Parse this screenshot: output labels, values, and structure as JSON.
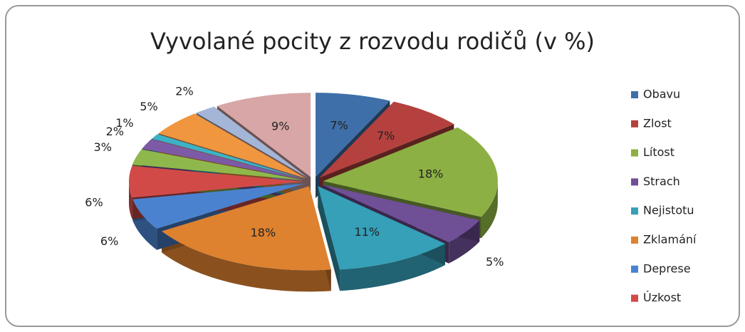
{
  "chart_data": {
    "type": "pie",
    "title": "Vyvolané pocity z rozvodu rodičů (v %)",
    "categories": [
      "Obavu",
      "Zlost",
      "Lítost",
      "Strach",
      "Nejistotu",
      "Zklamání",
      "Deprese",
      "Úzkost",
      null,
      null,
      null,
      null,
      null,
      null
    ],
    "values": [
      7,
      7,
      18,
      5,
      11,
      18,
      6,
      6,
      3,
      2,
      1,
      5,
      2,
      9
    ],
    "value_labels": [
      "7%",
      "7%",
      "18%",
      "5%",
      "11%",
      "18%",
      "6%",
      "6%",
      "3%",
      "2%",
      "1%",
      "5%",
      "2%",
      "9%"
    ],
    "colors": [
      "#3f6fa8",
      "#b4413e",
      "#8cb043",
      "#6f4f96",
      "#35a0b8",
      "#de8230",
      "#4a82d0",
      "#d24a48",
      "#8fb84c",
      "#7c5aa6",
      "#3cb2c8",
      "#f0963f",
      "#a3b6d8",
      "#d8a6a6"
    ],
    "legend": "right"
  }
}
